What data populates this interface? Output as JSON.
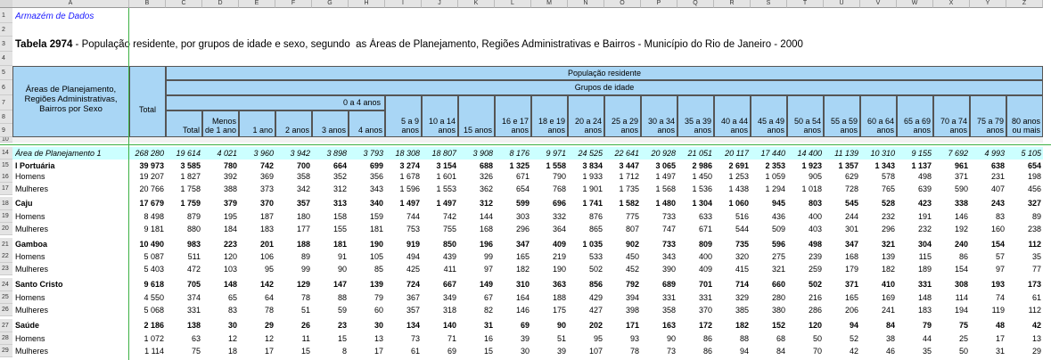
{
  "spreadsheet": {
    "column_letters": [
      "A",
      "B",
      "C",
      "D",
      "E",
      "F",
      "G",
      "H",
      "I",
      "J",
      "K",
      "L",
      "M",
      "N",
      "O",
      "P",
      "Q",
      "R",
      "S",
      "T",
      "U",
      "V",
      "W",
      "X",
      "Y",
      "Z"
    ],
    "row_numbers": [
      "1",
      "2",
      "3",
      "4",
      "5",
      "6",
      "7",
      "8",
      "9",
      "10",
      "14",
      "15",
      "16",
      "17",
      "18",
      "19",
      "20",
      "21",
      "22",
      "23",
      "24",
      "25",
      "26",
      "27",
      "28",
      "29"
    ]
  },
  "header": {
    "source": "Armazém de Dados",
    "table_id": "Tabela 2974",
    "title": " - População residente, por grupos de idade e sexo, segundo  as Áreas de Planejamento, Regiões Administrativas e Bairros - Município do Rio de Janeiro - 2000"
  },
  "table": {
    "corner": "Áreas de Planejamento, Regiões Administrativas, Bairros por Sexo",
    "total": "Total",
    "group": "População residente",
    "subgroup": "Grupos de idade",
    "range_0_4": "0 a 4 anos",
    "columns": [
      "Total",
      "Menos de 1 ano",
      "1 ano",
      "2 anos",
      "3 anos",
      "4 anos",
      "5 a 9 anos",
      "10 a 14 anos",
      "15 anos",
      "16 e 17 anos",
      "18 e 19 anos",
      "20 a 24 anos",
      "25 a 29 anos",
      "30 a 34 anos",
      "35 a 39 anos",
      "40 a 44 anos",
      "45 a 49 anos",
      "50 a 54 anos",
      "55 a 59 anos",
      "60 a 64 anos",
      "65 a 69 anos",
      "70 a 74 anos",
      "75 a 79 anos",
      "80 anos ou mais"
    ],
    "rows": [
      [
        "Área de Planejamento 1",
        "268 280",
        "19 614",
        "4 021",
        "3 960",
        "3 942",
        "3 898",
        "3 793",
        "18 308",
        "18 807",
        "3 908",
        "8 176",
        "9 971",
        "24 525",
        "22 641",
        "20 928",
        "21 051",
        "20 117",
        "17 440",
        "14 400",
        "11 139",
        "10 310",
        "9 155",
        "7 692",
        "4 993",
        "5 105"
      ],
      [
        "I Portuária",
        "39 973",
        "3 585",
        "780",
        "742",
        "700",
        "664",
        "699",
        "3 274",
        "3 154",
        "688",
        "1 325",
        "1 558",
        "3 834",
        "3 447",
        "3 065",
        "2 986",
        "2 691",
        "2 353",
        "1 923",
        "1 357",
        "1 343",
        "1 137",
        "961",
        "638",
        "654"
      ],
      [
        "Homens",
        "19 207",
        "1 827",
        "392",
        "369",
        "358",
        "352",
        "356",
        "1 678",
        "1 601",
        "326",
        "671",
        "790",
        "1 933",
        "1 712",
        "1 497",
        "1 450",
        "1 253",
        "1 059",
        "905",
        "629",
        "578",
        "498",
        "371",
        "231",
        "198"
      ],
      [
        "Mulheres",
        "20 766",
        "1 758",
        "388",
        "373",
        "342",
        "312",
        "343",
        "1 596",
        "1 553",
        "362",
        "654",
        "768",
        "1 901",
        "1 735",
        "1 568",
        "1 536",
        "1 438",
        "1 294",
        "1 018",
        "728",
        "765",
        "639",
        "590",
        "407",
        "456"
      ],
      [
        "Caju",
        "17 679",
        "1 759",
        "379",
        "370",
        "357",
        "313",
        "340",
        "1 497",
        "1 497",
        "312",
        "599",
        "696",
        "1 741",
        "1 582",
        "1 480",
        "1 304",
        "1 060",
        "945",
        "803",
        "545",
        "528",
        "423",
        "338",
        "243",
        "327"
      ],
      [
        "Homens",
        "8 498",
        "879",
        "195",
        "187",
        "180",
        "158",
        "159",
        "744",
        "742",
        "144",
        "303",
        "332",
        "876",
        "775",
        "733",
        "633",
        "516",
        "436",
        "400",
        "244",
        "232",
        "191",
        "146",
        "83",
        "89"
      ],
      [
        "Mulheres",
        "9 181",
        "880",
        "184",
        "183",
        "177",
        "155",
        "181",
        "753",
        "755",
        "168",
        "296",
        "364",
        "865",
        "807",
        "747",
        "671",
        "544",
        "509",
        "403",
        "301",
        "296",
        "232",
        "192",
        "160",
        "238"
      ],
      [
        "Gamboa",
        "10 490",
        "983",
        "223",
        "201",
        "188",
        "181",
        "190",
        "919",
        "850",
        "196",
        "347",
        "409",
        "1 035",
        "902",
        "733",
        "809",
        "735",
        "596",
        "498",
        "347",
        "321",
        "304",
        "240",
        "154",
        "112"
      ],
      [
        "Homens",
        "5 087",
        "511",
        "120",
        "106",
        "89",
        "91",
        "105",
        "494",
        "439",
        "99",
        "165",
        "219",
        "533",
        "450",
        "343",
        "400",
        "320",
        "275",
        "239",
        "168",
        "139",
        "115",
        "86",
        "57",
        "35"
      ],
      [
        "Mulheres",
        "5 403",
        "472",
        "103",
        "95",
        "99",
        "90",
        "85",
        "425",
        "411",
        "97",
        "182",
        "190",
        "502",
        "452",
        "390",
        "409",
        "415",
        "321",
        "259",
        "179",
        "182",
        "189",
        "154",
        "97",
        "77"
      ],
      [
        "Santo Cristo",
        "9 618",
        "705",
        "148",
        "142",
        "129",
        "147",
        "139",
        "724",
        "667",
        "149",
        "310",
        "363",
        "856",
        "792",
        "689",
        "701",
        "714",
        "660",
        "502",
        "371",
        "410",
        "331",
        "308",
        "193",
        "173"
      ],
      [
        "Homens",
        "4 550",
        "374",
        "65",
        "64",
        "78",
        "88",
        "79",
        "367",
        "349",
        "67",
        "164",
        "188",
        "429",
        "394",
        "331",
        "331",
        "329",
        "280",
        "216",
        "165",
        "169",
        "148",
        "114",
        "74",
        "61"
      ],
      [
        "Mulheres",
        "5 068",
        "331",
        "83",
        "78",
        "51",
        "59",
        "60",
        "357",
        "318",
        "82",
        "146",
        "175",
        "427",
        "398",
        "358",
        "370",
        "385",
        "380",
        "286",
        "206",
        "241",
        "183",
        "194",
        "119",
        "112"
      ],
      [
        "Saúde",
        "2 186",
        "138",
        "30",
        "29",
        "26",
        "23",
        "30",
        "134",
        "140",
        "31",
        "69",
        "90",
        "202",
        "171",
        "163",
        "172",
        "182",
        "152",
        "120",
        "94",
        "84",
        "79",
        "75",
        "48",
        "42"
      ],
      [
        "Homens",
        "1 072",
        "63",
        "12",
        "12",
        "11",
        "15",
        "13",
        "73",
        "71",
        "16",
        "39",
        "51",
        "95",
        "93",
        "90",
        "86",
        "88",
        "68",
        "50",
        "52",
        "38",
        "44",
        "25",
        "17",
        "13"
      ],
      [
        "Mulheres",
        "1 114",
        "75",
        "18",
        "17",
        "15",
        "8",
        "17",
        "61",
        "69",
        "15",
        "30",
        "39",
        "107",
        "78",
        "73",
        "86",
        "94",
        "84",
        "70",
        "42",
        "46",
        "35",
        "50",
        "31",
        "29"
      ]
    ]
  }
}
